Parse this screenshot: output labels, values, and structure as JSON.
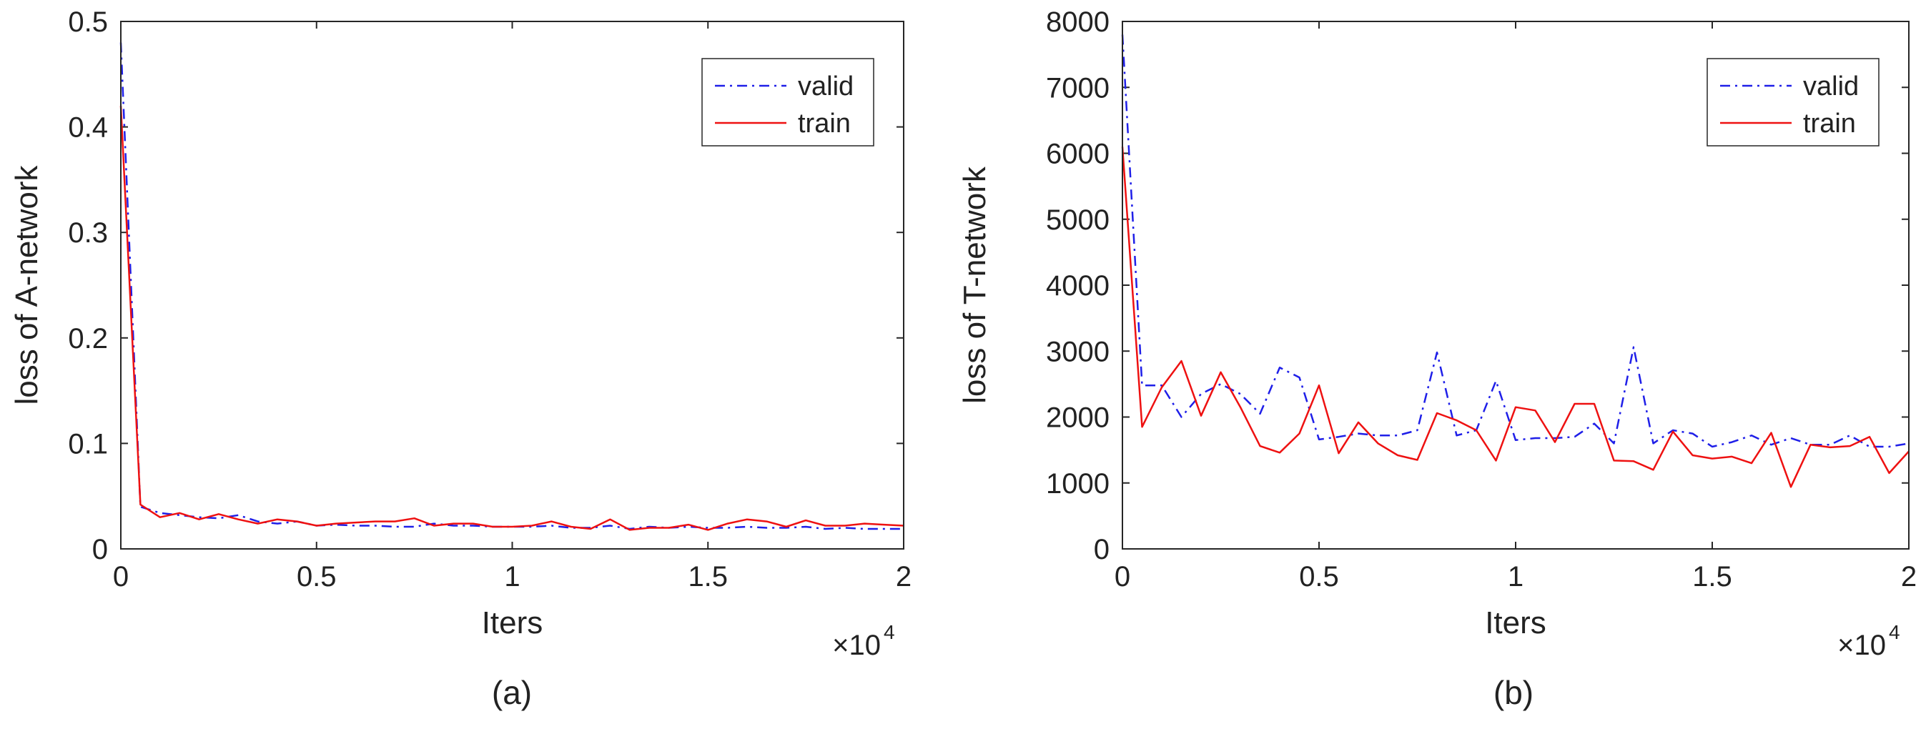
{
  "chart_data": [
    {
      "type": "line",
      "panel_label": "(a)",
      "title": "",
      "xlabel": "Iters",
      "ylabel": "loss of A-network",
      "x_multiplier": "×10",
      "x_multiplier_exp": "4",
      "xlim": [
        0,
        2
      ],
      "ylim": [
        0,
        0.5
      ],
      "xticks": [
        0,
        0.5,
        1,
        1.5,
        2
      ],
      "xtick_labels": [
        "0",
        "0.5",
        "1",
        "1.5",
        "2"
      ],
      "yticks": [
        0,
        0.1,
        0.2,
        0.3,
        0.4,
        0.5
      ],
      "ytick_labels": [
        "0",
        "0.1",
        "0.2",
        "0.3",
        "0.4",
        "0.5"
      ],
      "legend": "top-right",
      "series": [
        {
          "name": "valid",
          "color": "#1f1fe8",
          "dash": "dashdot",
          "x": [
            0,
            0.05,
            0.1,
            0.15,
            0.2,
            0.25,
            0.3,
            0.35,
            0.4,
            0.45,
            0.5,
            0.55,
            0.6,
            0.65,
            0.7,
            0.75,
            0.8,
            0.85,
            0.9,
            0.95,
            1.0,
            1.05,
            1.1,
            1.15,
            1.2,
            1.25,
            1.3,
            1.35,
            1.4,
            1.45,
            1.5,
            1.55,
            1.6,
            1.65,
            1.7,
            1.75,
            1.8,
            1.85,
            1.9,
            1.95,
            2.0
          ],
          "y": [
            0.48,
            0.04,
            0.034,
            0.032,
            0.03,
            0.029,
            0.032,
            0.026,
            0.024,
            0.026,
            0.022,
            0.023,
            0.022,
            0.022,
            0.021,
            0.021,
            0.024,
            0.022,
            0.022,
            0.021,
            0.021,
            0.021,
            0.022,
            0.02,
            0.02,
            0.022,
            0.019,
            0.021,
            0.02,
            0.021,
            0.02,
            0.02,
            0.021,
            0.02,
            0.02,
            0.021,
            0.019,
            0.02,
            0.019,
            0.019,
            0.019
          ]
        },
        {
          "name": "train",
          "color": "#ee1111",
          "dash": "solid",
          "x": [
            0,
            0.05,
            0.1,
            0.15,
            0.2,
            0.25,
            0.3,
            0.35,
            0.4,
            0.45,
            0.5,
            0.55,
            0.6,
            0.65,
            0.7,
            0.75,
            0.8,
            0.85,
            0.9,
            0.95,
            1.0,
            1.05,
            1.1,
            1.15,
            1.2,
            1.25,
            1.3,
            1.35,
            1.4,
            1.45,
            1.5,
            1.55,
            1.6,
            1.65,
            1.7,
            1.75,
            1.8,
            1.85,
            1.9,
            1.95,
            2.0
          ],
          "y": [
            0.42,
            0.042,
            0.03,
            0.034,
            0.028,
            0.033,
            0.028,
            0.024,
            0.028,
            0.026,
            0.022,
            0.024,
            0.025,
            0.026,
            0.026,
            0.029,
            0.022,
            0.024,
            0.024,
            0.021,
            0.021,
            0.022,
            0.026,
            0.021,
            0.019,
            0.028,
            0.018,
            0.02,
            0.02,
            0.023,
            0.018,
            0.024,
            0.028,
            0.026,
            0.021,
            0.027,
            0.022,
            0.022,
            0.024,
            0.023,
            0.022
          ]
        }
      ]
    },
    {
      "type": "line",
      "panel_label": "(b)",
      "title": "",
      "xlabel": "Iters",
      "ylabel": "loss of T-network",
      "x_multiplier": "×10",
      "x_multiplier_exp": "4",
      "xlim": [
        0,
        2
      ],
      "ylim": [
        0,
        8000
      ],
      "xticks": [
        0,
        0.5,
        1,
        1.5,
        2
      ],
      "xtick_labels": [
        "0",
        "0.5",
        "1",
        "1.5",
        "2"
      ],
      "yticks": [
        0,
        1000,
        2000,
        3000,
        4000,
        5000,
        6000,
        7000,
        8000
      ],
      "ytick_labels": [
        "0",
        "1000",
        "2000",
        "3000",
        "4000",
        "5000",
        "6000",
        "7000",
        "8000"
      ],
      "legend": "top-right",
      "series": [
        {
          "name": "valid",
          "color": "#1f1fe8",
          "dash": "dashdot",
          "x": [
            0,
            0.05,
            0.1,
            0.15,
            0.2,
            0.25,
            0.3,
            0.35,
            0.4,
            0.45,
            0.5,
            0.55,
            0.6,
            0.65,
            0.7,
            0.75,
            0.8,
            0.85,
            0.9,
            0.95,
            1.0,
            1.05,
            1.1,
            1.15,
            1.2,
            1.25,
            1.3,
            1.35,
            1.4,
            1.45,
            1.5,
            1.55,
            1.6,
            1.65,
            1.7,
            1.75,
            1.8,
            1.85,
            1.9,
            1.95,
            2.0
          ],
          "y": [
            7800,
            2480,
            2480,
            2000,
            2350,
            2500,
            2350,
            2050,
            2750,
            2600,
            1660,
            1700,
            1750,
            1720,
            1720,
            1800,
            2980,
            1720,
            1800,
            2550,
            1650,
            1680,
            1680,
            1700,
            1900,
            1600,
            3060,
            1600,
            1800,
            1750,
            1550,
            1620,
            1720,
            1580,
            1680,
            1580,
            1580,
            1720,
            1550,
            1550,
            1600
          ]
        },
        {
          "name": "train",
          "color": "#ee1111",
          "dash": "solid",
          "x": [
            0,
            0.05,
            0.1,
            0.15,
            0.2,
            0.25,
            0.3,
            0.35,
            0.4,
            0.45,
            0.5,
            0.55,
            0.6,
            0.65,
            0.7,
            0.75,
            0.8,
            0.85,
            0.9,
            0.95,
            1.0,
            1.05,
            1.1,
            1.15,
            1.2,
            1.25,
            1.3,
            1.35,
            1.4,
            1.45,
            1.5,
            1.55,
            1.6,
            1.65,
            1.7,
            1.75,
            1.8,
            1.85,
            1.9,
            1.95,
            2.0
          ],
          "y": [
            6100,
            1850,
            2450,
            2850,
            2020,
            2680,
            2150,
            1560,
            1460,
            1750,
            2480,
            1450,
            1920,
            1600,
            1420,
            1350,
            2060,
            1950,
            1800,
            1340,
            2150,
            2100,
            1620,
            2200,
            2200,
            1340,
            1330,
            1200,
            1780,
            1420,
            1370,
            1400,
            1300,
            1760,
            940,
            1580,
            1540,
            1560,
            1700,
            1150,
            1480
          ]
        }
      ]
    }
  ]
}
